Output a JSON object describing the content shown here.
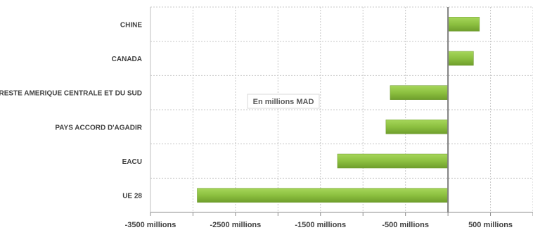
{
  "chart_data": {
    "type": "bar",
    "orientation": "horizontal",
    "categories": [
      "CHINE",
      "CANADA",
      "RESTE AMERIQUE CENTRALE ET DU SUD",
      "PAYS ACCORD D'AGADIR",
      "EACU",
      "UE 28"
    ],
    "values": [
      370,
      300,
      -680,
      -730,
      -1300,
      -2950
    ],
    "xlim": [
      -3500,
      1000
    ],
    "xticks": [
      -3500,
      -2500,
      -1500,
      -500,
      500
    ],
    "xtick_labels": [
      "-3500 millions",
      "-2500 millions",
      "-1500 millions",
      "-500 millions",
      "500 millions"
    ],
    "annotation": "En millions MAD",
    "grid": "dashed vertical and horizontal",
    "bar_color": "#8cc040",
    "title": "",
    "xlabel": "",
    "ylabel": ""
  }
}
